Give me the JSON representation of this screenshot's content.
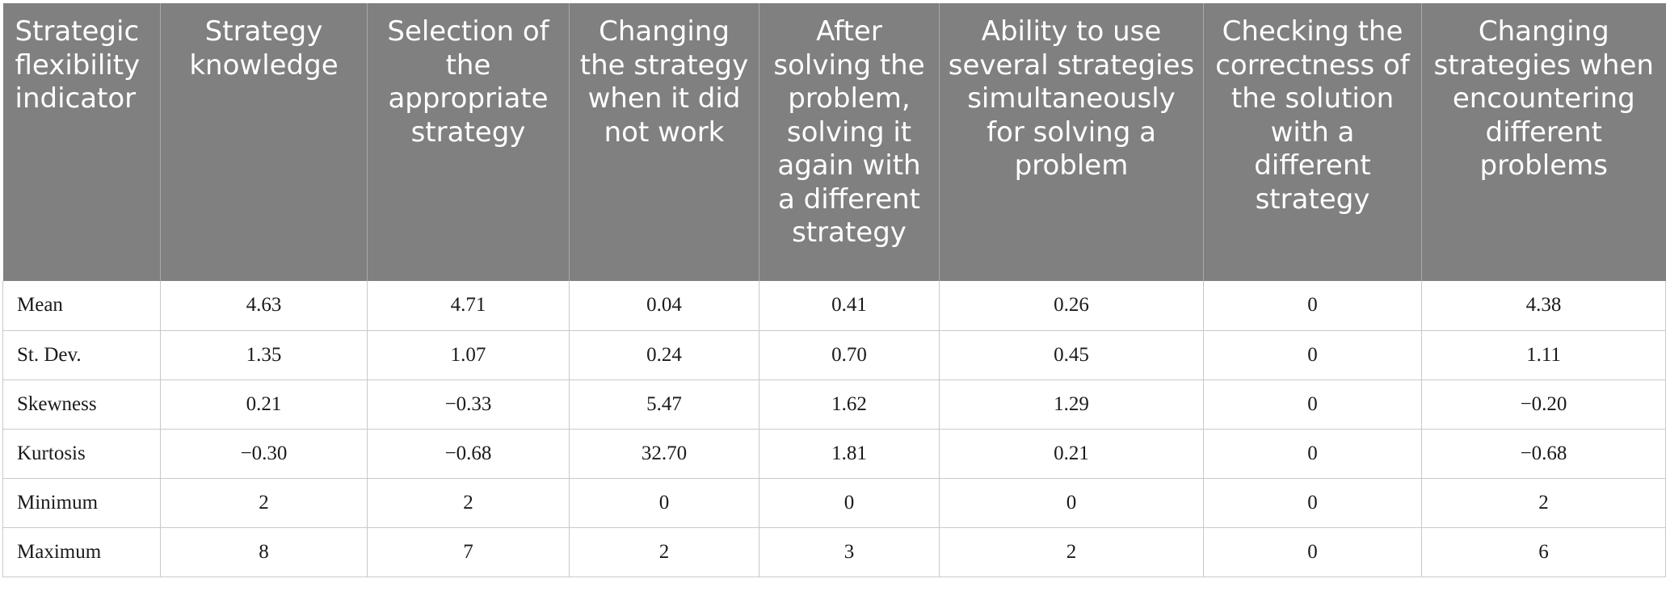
{
  "table": {
    "headers": [
      "Strategic flexibility indicator",
      "Strategy knowledge",
      "Selection of the appropriate strategy",
      "Changing the strategy when it did not work",
      "After solving the problem, solving it again with a different strategy",
      "Ability to use several strategies simultaneously for solving a problem",
      "Checking the correctness of the solution with a different strategy",
      "Changing strategies when encountering different problems"
    ],
    "rows": [
      {
        "label": "Mean",
        "values": [
          "4.63",
          "4.71",
          "0.04",
          "0.41",
          "0.26",
          "0",
          "4.38"
        ]
      },
      {
        "label": "St. Dev.",
        "values": [
          "1.35",
          "1.07",
          "0.24",
          "0.70",
          "0.45",
          "0",
          "1.11"
        ]
      },
      {
        "label": "Skewness",
        "values": [
          "0.21",
          "−0.33",
          "5.47",
          "1.62",
          "1.29",
          "0",
          "−0.20"
        ]
      },
      {
        "label": "Kurtosis",
        "values": [
          "−0.30",
          "−0.68",
          "32.70",
          "1.81",
          "0.21",
          "0",
          "−0.68"
        ]
      },
      {
        "label": "Minimum",
        "values": [
          "2",
          "2",
          "0",
          "0",
          "0",
          "0",
          "2"
        ]
      },
      {
        "label": "Maximum",
        "values": [
          "8",
          "7",
          "2",
          "3",
          "2",
          "0",
          "6"
        ]
      }
    ]
  },
  "colors": {
    "header_background": "#7f807f",
    "header_text": "#ffffff",
    "grid_line": "#c9c9c9"
  }
}
